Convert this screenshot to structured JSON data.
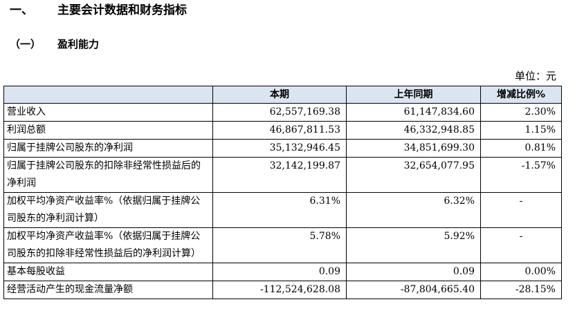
{
  "section": {
    "number": "一、",
    "title": "主要会计数据和财务指标"
  },
  "subsection": {
    "number": "（一）",
    "title": "盈利能力"
  },
  "unit_label": "单位：元",
  "table": {
    "headers": [
      "",
      "本期",
      "上年同期",
      "增减比例%"
    ],
    "rows": [
      {
        "item": "营业收入",
        "current": "62,557,169.38",
        "prior": "61,147,834.60",
        "change": "2.30%"
      },
      {
        "item": "利润总额",
        "current": "46,867,811.53",
        "prior": "46,332,948.85",
        "change": "1.15%"
      },
      {
        "item": "归属于挂牌公司股东的净利润",
        "current": "35,132,946.45",
        "prior": "34,851,699.30",
        "change": "0.81%"
      },
      {
        "item": "归属于挂牌公司股东的扣除非经常性损益后的净利润",
        "current": "32,142,199.87",
        "prior": "32,654,077.95",
        "change": "-1.57%"
      },
      {
        "item": "加权平均净资产收益率%（依据归属于挂牌公司股东的净利润计算）",
        "current": "6.31%",
        "prior": "6.32%",
        "change": "-"
      },
      {
        "item": "加权平均净资产收益率%（依据归属于挂牌公司股东的扣除非经常性损益后的净利润计算）",
        "current": "5.78%",
        "prior": "5.92%",
        "change": "-"
      },
      {
        "item": "基本每股收益",
        "current": "0.09",
        "prior": "0.09",
        "change": "0.00%"
      },
      {
        "item": "经营活动产生的现金流量净额",
        "current": "-112,524,628.08",
        "prior": "-87,804,665.40",
        "change": "-28.15%"
      }
    ]
  }
}
